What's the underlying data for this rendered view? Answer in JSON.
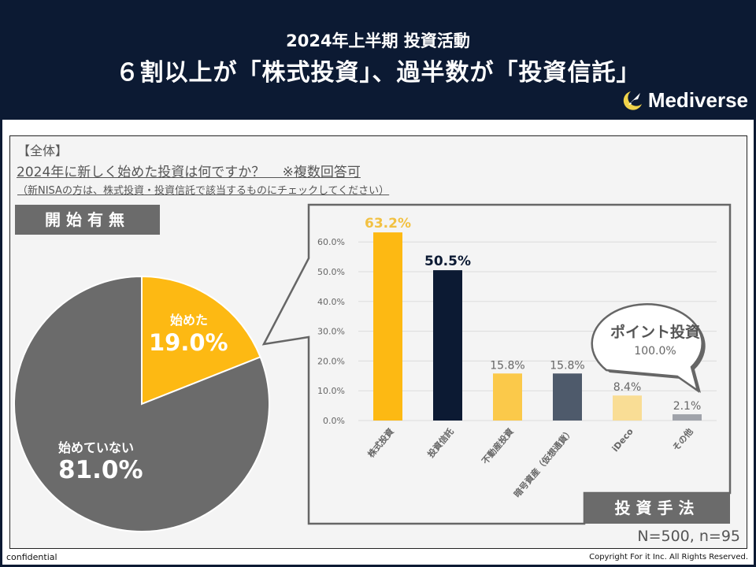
{
  "header": {
    "subtitle": "2024年上半期 投資活動",
    "title": "６割以上が「株式投資」、過半数が「投資信託」",
    "brand": "Mediverse",
    "brand_icon": "rocket-moon-logo"
  },
  "question": {
    "tag": "【全体】",
    "text": "2024年に新しく始めた投資は何ですか？　 ※複数回答可",
    "note": "（新NISAの方は、株式投資・投資信託で該当するものにチェックしてください）"
  },
  "labels": {
    "pie_section": "開始有無",
    "bar_section": "投資手法"
  },
  "callout": {
    "title": "ポイント投資",
    "value": "100.0%"
  },
  "sample_size": "N=500, n=95",
  "footer": {
    "left": "confidential",
    "right": "Copyright For it Inc. All Rights Reserved."
  },
  "colors": {
    "navy": "#0c1a33",
    "gold": "#fdb913",
    "gray": "#6b6b6b"
  },
  "chart_data": [
    {
      "type": "pie",
      "title": "開始有無",
      "slices": [
        {
          "label": "始めた",
          "value": 19.0,
          "display": "19.0%",
          "color": "#fdb913"
        },
        {
          "label": "始めていない",
          "value": 81.0,
          "display": "81.0%",
          "color": "#6b6b6b"
        }
      ]
    },
    {
      "type": "bar",
      "title": "投資手法",
      "categories": [
        "株式投資",
        "投資信託",
        "不動産投資",
        "暗号資産（仮想通貨）",
        "iDeco",
        "その他"
      ],
      "values": [
        63.2,
        50.5,
        15.8,
        15.8,
        8.4,
        2.1
      ],
      "value_labels": [
        "63.2%",
        "50.5%",
        "15.8%",
        "15.8%",
        "8.4%",
        "2.1%"
      ],
      "bar_colors": [
        "#fdb913",
        "#0c1a33",
        "#fbc94a",
        "#4e5a6b",
        "#f9dd95",
        "#a0a3aa"
      ],
      "label_colors": [
        "#f2c142",
        "#0c1a33",
        "#666666",
        "#666666",
        "#666666",
        "#666666"
      ],
      "label_bold": [
        true,
        true,
        false,
        false,
        false,
        false
      ],
      "yticks": [
        "0.0%",
        "10.0%",
        "20.0%",
        "30.0%",
        "40.0%",
        "50.0%",
        "60.0%"
      ],
      "ylim": [
        0,
        60
      ],
      "grid": true,
      "xlabel": "",
      "ylabel": ""
    }
  ]
}
